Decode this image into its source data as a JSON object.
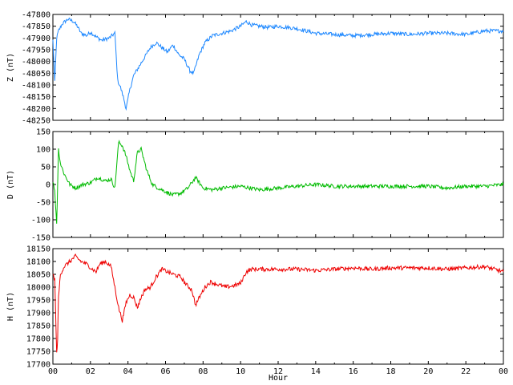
{
  "chart_data": [
    {
      "type": "line",
      "ylabel": "Z (nT)",
      "color": "#1e88ff",
      "xlim": [
        0,
        24
      ],
      "ylim": [
        -48250,
        -47800
      ],
      "yticks": [
        "-47800",
        "-47850",
        "-47900",
        "-47950",
        "-48000",
        "-48050",
        "-48100",
        "-48150",
        "-48200",
        "-48250"
      ],
      "series": [
        {
          "x": [
            0.0,
            0.1,
            0.2,
            0.3,
            0.5,
            0.8,
            1.1,
            1.3,
            1.5,
            1.8,
            2.0,
            2.3,
            2.6,
            3.0,
            3.3,
            3.45,
            3.6,
            3.75,
            3.9,
            4.1,
            4.3,
            4.6,
            4.9,
            5.2,
            5.5,
            5.8,
            6.1,
            6.4,
            6.7,
            7.0,
            7.3,
            7.5,
            7.8,
            8.1,
            8.5,
            9.0,
            9.5,
            10.0,
            10.3,
            10.6,
            11.0,
            11.5,
            12.0,
            13.0,
            14.0,
            15.0,
            16.0,
            17.0,
            18.0,
            19.0,
            20.0,
            21.0,
            22.0,
            23.0,
            24.0
          ],
          "y": [
            -47910,
            -48090,
            -47900,
            -47870,
            -47840,
            -47820,
            -47830,
            -47850,
            -47880,
            -47890,
            -47875,
            -47895,
            -47910,
            -47900,
            -47880,
            -48080,
            -48110,
            -48150,
            -48200,
            -48120,
            -48060,
            -48020,
            -47980,
            -47940,
            -47920,
            -47940,
            -47960,
            -47930,
            -47970,
            -47990,
            -48040,
            -48050,
            -47970,
            -47920,
            -47890,
            -47880,
            -47870,
            -47850,
            -47830,
            -47845,
            -47850,
            -47855,
            -47850,
            -47860,
            -47880,
            -47885,
            -47890,
            -47885,
            -47880,
            -47885,
            -47880,
            -47880,
            -47885,
            -47870,
            -47870
          ]
        }
      ]
    },
    {
      "type": "line",
      "ylabel": "D (nT)",
      "color": "#00bb00",
      "xlim": [
        0,
        24
      ],
      "ylim": [
        -150,
        150
      ],
      "yticks": [
        "150",
        "100",
        "50",
        "0",
        "-50",
        "-100",
        "-150"
      ],
      "series": [
        {
          "x": [
            0.0,
            0.1,
            0.2,
            0.3,
            0.4,
            0.6,
            0.9,
            1.2,
            1.6,
            2.0,
            2.4,
            2.8,
            3.1,
            3.3,
            3.5,
            3.7,
            3.9,
            4.1,
            4.3,
            4.5,
            4.7,
            5.0,
            5.3,
            5.6,
            6.0,
            6.4,
            6.8,
            7.2,
            7.6,
            8.0,
            8.5,
            9.0,
            10.0,
            11.0,
            12.0,
            13.0,
            14.0,
            15.0,
            16.0,
            17.0,
            18.0,
            19.0,
            20.0,
            21.0,
            22.0,
            23.0,
            24.0
          ],
          "y": [
            10,
            -20,
            -110,
            100,
            60,
            30,
            0,
            -10,
            0,
            5,
            20,
            10,
            15,
            -10,
            120,
            110,
            80,
            40,
            10,
            90,
            100,
            40,
            0,
            -10,
            -20,
            -30,
            -25,
            -10,
            20,
            -10,
            -15,
            -10,
            -5,
            -15,
            -10,
            -5,
            0,
            -5,
            -5,
            -5,
            -5,
            -5,
            -5,
            -10,
            -5,
            -5,
            0
          ]
        }
      ]
    },
    {
      "type": "line",
      "ylabel": "H (nT)",
      "xlabel": "Hour",
      "color": "#ee0000",
      "xlim": [
        0,
        24
      ],
      "ylim": [
        17700,
        18150
      ],
      "yticks": [
        "18150",
        "18100",
        "18050",
        "18000",
        "17950",
        "17900",
        "17850",
        "17800",
        "17750",
        "17700"
      ],
      "xticks": [
        "00",
        "02",
        "04",
        "06",
        "08",
        "10",
        "12",
        "14",
        "16",
        "18",
        "20",
        "22",
        "00"
      ],
      "series": [
        {
          "x": [
            0.0,
            0.1,
            0.2,
            0.25,
            0.3,
            0.4,
            0.6,
            0.9,
            1.2,
            1.5,
            1.8,
            2.1,
            2.3,
            2.5,
            2.8,
            3.1,
            3.3,
            3.5,
            3.7,
            3.9,
            4.1,
            4.3,
            4.5,
            4.7,
            4.9,
            5.2,
            5.5,
            5.8,
            6.1,
            6.4,
            6.8,
            7.1,
            7.4,
            7.6,
            7.8,
            8.1,
            8.4,
            8.8,
            9.2,
            9.6,
            10.0,
            10.3,
            10.6,
            11.0,
            12.0,
            13.0,
            14.0,
            15.0,
            16.0,
            17.0,
            18.0,
            19.0,
            20.0,
            21.0,
            22.0,
            23.0,
            23.5,
            24.0
          ],
          "y": [
            18050,
            18030,
            17740,
            17800,
            17960,
            18050,
            18080,
            18100,
            18120,
            18100,
            18090,
            18070,
            18060,
            18090,
            18100,
            18080,
            18000,
            17920,
            17870,
            17940,
            17970,
            17960,
            17920,
            17960,
            17990,
            18000,
            18040,
            18070,
            18060,
            18050,
            18040,
            18010,
            17990,
            17930,
            17960,
            18000,
            18020,
            18010,
            18000,
            18005,
            18015,
            18060,
            18070,
            18070,
            18070,
            18070,
            18065,
            18070,
            18075,
            18070,
            18075,
            18075,
            18075,
            18070,
            18075,
            18080,
            18070,
            18060
          ]
        }
      ]
    }
  ]
}
